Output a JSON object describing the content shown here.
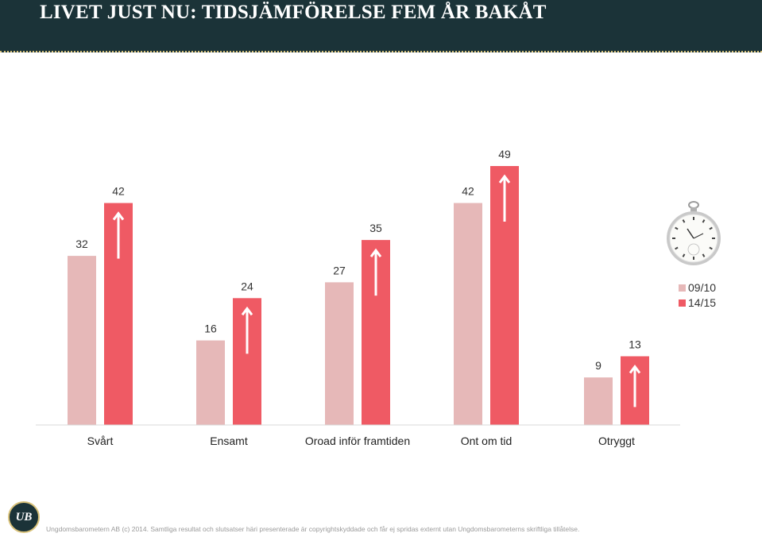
{
  "header": {
    "title": "LIVET JUST NU: TIDSJÄMFÖRELSE FEM ÅR BAKÅT"
  },
  "chart_data": {
    "type": "bar",
    "categories": [
      "Svårt",
      "Ensamt",
      "Oroad inför framtiden",
      "Ont om tid",
      "Otryggt"
    ],
    "series": [
      {
        "name": "09/10",
        "values": [
          32,
          16,
          27,
          42,
          9
        ],
        "color": "#e6b8b8"
      },
      {
        "name": "14/15",
        "values": [
          42,
          24,
          35,
          49,
          13
        ],
        "color": "#ef5a64"
      }
    ],
    "ylim": [
      0,
      60
    ],
    "legend": "right",
    "grid": false,
    "annotations": "up-arrow-icon on every 14/15 bar"
  },
  "logo": {
    "text": "UB",
    "icon": "ungdomsbarometern-logo"
  },
  "clock": {
    "icon": "pocket-watch-icon"
  },
  "footer": {
    "text": "Ungdomsbarometern AB (c) 2014. Samtliga resultat och slutsatser häri presenterade är copyrightskyddade och får ej spridas externt utan Ungdomsbarometerns skriftliga tillåtelse."
  }
}
